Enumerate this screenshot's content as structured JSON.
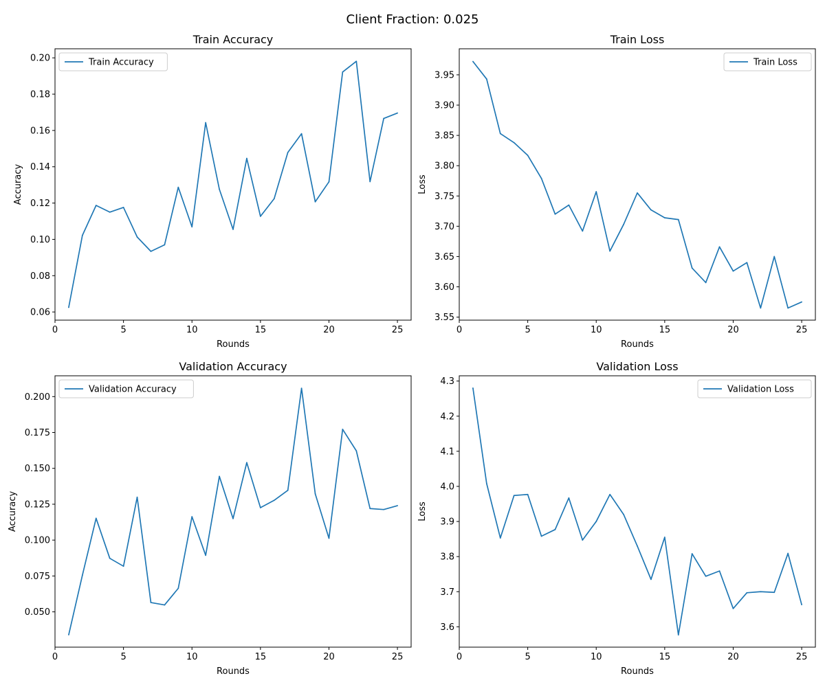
{
  "figure": {
    "suptitle": "Client Fraction: 0.025"
  },
  "chart_data": [
    {
      "type": "line",
      "title": "Train Accuracy",
      "xlabel": "Rounds",
      "ylabel": "Accuracy",
      "legend_position": "upper-left",
      "grid": false,
      "x": [
        1,
        2,
        3,
        4,
        5,
        6,
        7,
        8,
        9,
        10,
        11,
        12,
        13,
        14,
        15,
        16,
        17,
        18,
        19,
        20,
        21,
        22,
        23,
        24,
        25
      ],
      "series": [
        {
          "name": "Train Accuracy",
          "color": "#1f77b4",
          "values": [
            0.0625,
            0.1022,
            0.1187,
            0.115,
            0.1176,
            0.1013,
            0.0934,
            0.097,
            0.1287,
            0.1069,
            0.1643,
            0.1276,
            0.1055,
            0.1446,
            0.1127,
            0.1224,
            0.1479,
            0.1582,
            0.1207,
            0.1317,
            0.1922,
            0.1981,
            0.1318,
            0.1666,
            0.1696
          ]
        }
      ],
      "xlim": [
        0,
        26
      ],
      "ylim": [
        0.0555,
        0.205
      ],
      "xticks": [
        0,
        5,
        10,
        15,
        20,
        25
      ],
      "xtick_labels": [
        "0",
        "5",
        "10",
        "15",
        "20",
        "25"
      ],
      "yticks": [
        0.06,
        0.08,
        0.1,
        0.12,
        0.14,
        0.16,
        0.18,
        0.2
      ],
      "ytick_labels": [
        "0.06",
        "0.08",
        "0.10",
        "0.12",
        "0.14",
        "0.16",
        "0.18",
        "0.20"
      ]
    },
    {
      "type": "line",
      "title": "Train Loss",
      "xlabel": "Rounds",
      "ylabel": "Loss",
      "legend_position": "upper-right",
      "grid": false,
      "x": [
        1,
        2,
        3,
        4,
        5,
        6,
        7,
        8,
        9,
        10,
        11,
        12,
        13,
        14,
        15,
        16,
        17,
        18,
        19,
        20,
        21,
        22,
        23,
        24,
        25
      ],
      "series": [
        {
          "name": "Train Loss",
          "color": "#1f77b4",
          "values": [
            3.972,
            3.943,
            3.853,
            3.838,
            3.817,
            3.779,
            3.72,
            3.735,
            3.692,
            3.757,
            3.659,
            3.703,
            3.755,
            3.727,
            3.714,
            3.711,
            3.631,
            3.607,
            3.666,
            3.626,
            3.64,
            3.565,
            3.65,
            3.565,
            3.575
          ]
        }
      ],
      "xlim": [
        0,
        26
      ],
      "ylim": [
        3.545,
        3.993
      ],
      "xticks": [
        0,
        5,
        10,
        15,
        20,
        25
      ],
      "xtick_labels": [
        "0",
        "5",
        "10",
        "15",
        "20",
        "25"
      ],
      "yticks": [
        3.55,
        3.6,
        3.65,
        3.7,
        3.75,
        3.8,
        3.85,
        3.9,
        3.95
      ],
      "ytick_labels": [
        "3.55",
        "3.60",
        "3.65",
        "3.70",
        "3.75",
        "3.80",
        "3.85",
        "3.90",
        "3.95"
      ]
    },
    {
      "type": "line",
      "title": "Validation Accuracy",
      "xlabel": "Rounds",
      "ylabel": "Accuracy",
      "legend_position": "upper-left",
      "grid": false,
      "x": [
        1,
        2,
        3,
        4,
        5,
        6,
        7,
        8,
        9,
        10,
        11,
        12,
        13,
        14,
        15,
        16,
        17,
        18,
        19,
        20,
        21,
        22,
        23,
        24,
        25
      ],
      "series": [
        {
          "name": "Validation Accuracy",
          "color": "#1f77b4",
          "values": [
            0.034,
            0.0755,
            0.1152,
            0.0873,
            0.0818,
            0.1299,
            0.0565,
            0.0548,
            0.0664,
            0.1163,
            0.0894,
            0.1444,
            0.115,
            0.154,
            0.1226,
            0.1277,
            0.1347,
            0.2058,
            0.1322,
            0.1013,
            0.1772,
            0.1622,
            0.122,
            0.1213,
            0.124
          ]
        }
      ],
      "xlim": [
        0,
        26
      ],
      "ylim": [
        0.0254,
        0.2145
      ],
      "xticks": [
        0,
        5,
        10,
        15,
        20,
        25
      ],
      "xtick_labels": [
        "0",
        "5",
        "10",
        "15",
        "20",
        "25"
      ],
      "yticks": [
        0.05,
        0.075,
        0.1,
        0.125,
        0.15,
        0.175,
        0.2
      ],
      "ytick_labels": [
        "0.050",
        "0.075",
        "0.100",
        "0.125",
        "0.150",
        "0.175",
        "0.200"
      ]
    },
    {
      "type": "line",
      "title": "Validation Loss",
      "xlabel": "Rounds",
      "ylabel": "Loss",
      "legend_position": "upper-right",
      "grid": false,
      "x": [
        1,
        2,
        3,
        4,
        5,
        6,
        7,
        8,
        9,
        10,
        11,
        12,
        13,
        14,
        15,
        16,
        17,
        18,
        19,
        20,
        21,
        22,
        23,
        24,
        25
      ],
      "series": [
        {
          "name": "Validation Loss",
          "color": "#1f77b4",
          "values": [
            4.28,
            4.008,
            3.853,
            3.974,
            3.977,
            3.858,
            3.877,
            3.967,
            3.847,
            3.9,
            3.977,
            3.92,
            3.83,
            3.735,
            3.855,
            3.577,
            3.808,
            3.744,
            3.759,
            3.652,
            3.697,
            3.7,
            3.698,
            3.809,
            3.663
          ]
        }
      ],
      "xlim": [
        0,
        26
      ],
      "ylim": [
        3.542,
        4.315
      ],
      "xticks": [
        0,
        5,
        10,
        15,
        20,
        25
      ],
      "xtick_labels": [
        "0",
        "5",
        "10",
        "15",
        "20",
        "25"
      ],
      "yticks": [
        3.6,
        3.7,
        3.8,
        3.9,
        4.0,
        4.1,
        4.2,
        4.3
      ],
      "ytick_labels": [
        "3.6",
        "3.7",
        "3.8",
        "3.9",
        "4.0",
        "4.1",
        "4.2",
        "4.3"
      ]
    }
  ]
}
